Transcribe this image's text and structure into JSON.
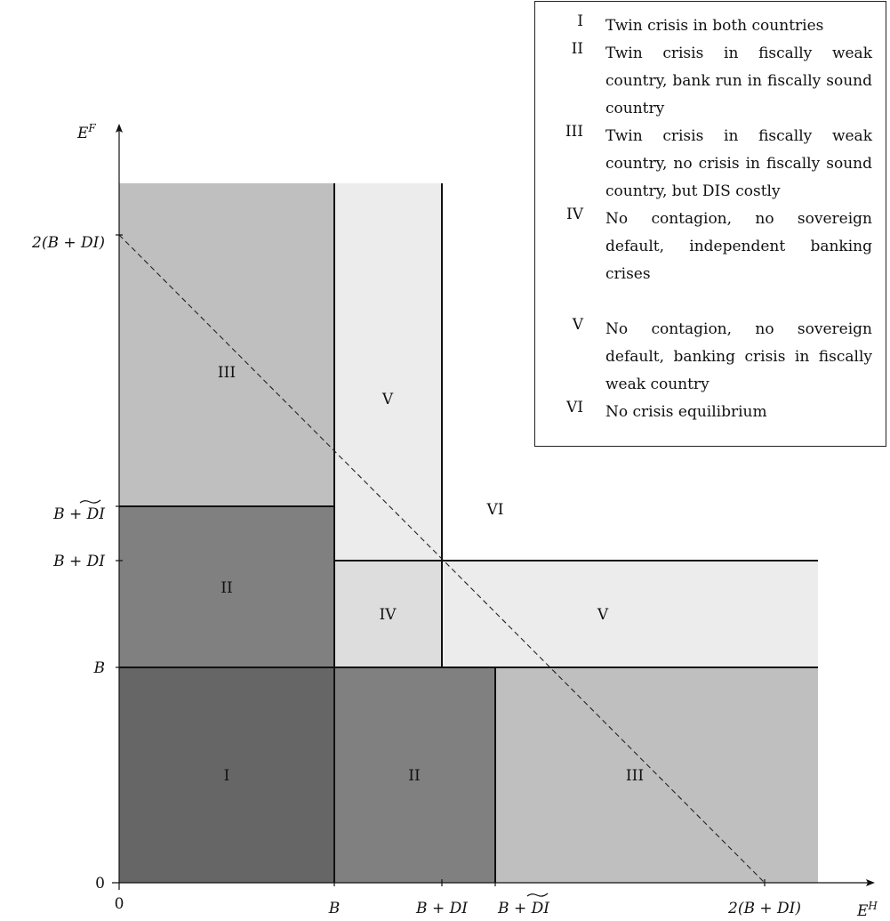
{
  "axes": {
    "x_label": "E",
    "x_label_sup": "H",
    "y_label": "E",
    "y_label_sup": "F"
  },
  "x_ticks": {
    "origin": "0",
    "b": "B",
    "b_di": "B + DI",
    "b_di_tilde_prefix": "B + ",
    "b_di_tilde_di": "DI",
    "two_b_di": "2(B + DI)"
  },
  "y_ticks": {
    "origin": "0",
    "b": "B",
    "b_di": "B + DI",
    "b_di_tilde_prefix": "B + ",
    "b_di_tilde_di": "DI",
    "two_b_di": "2(B + DI)"
  },
  "regions": {
    "i": "I",
    "ii_left": "II",
    "ii_bottom": "II",
    "iii_left": "III",
    "iii_bottom": "III",
    "iv": "IV",
    "v_top": "V",
    "v_right": "V",
    "vi": "VI"
  },
  "region_colors": {
    "I": "#666666",
    "II": "#808080",
    "III": "#bfbfbf",
    "IV": "#dddddd",
    "V": "#ececec",
    "VI": "#ffffff"
  },
  "legend": [
    {
      "num": "I",
      "text": "Twin crisis in both countries"
    },
    {
      "num": "II",
      "text": "Twin crisis in fiscally weak country, bank run in fiscally sound country"
    },
    {
      "num": "III",
      "text": "Twin crisis in fiscally weak country, no crisis in fiscally sound country, but DIS costly"
    },
    {
      "num": "IV",
      "text": "No contagion, no sovereign default, independent banking crises"
    },
    {
      "num": "V",
      "text": "No contagion, no sovereign default, banking crisis in fis­cally weak country"
    },
    {
      "num": "VI",
      "text": "No crisis equilibrium"
    }
  ]
}
